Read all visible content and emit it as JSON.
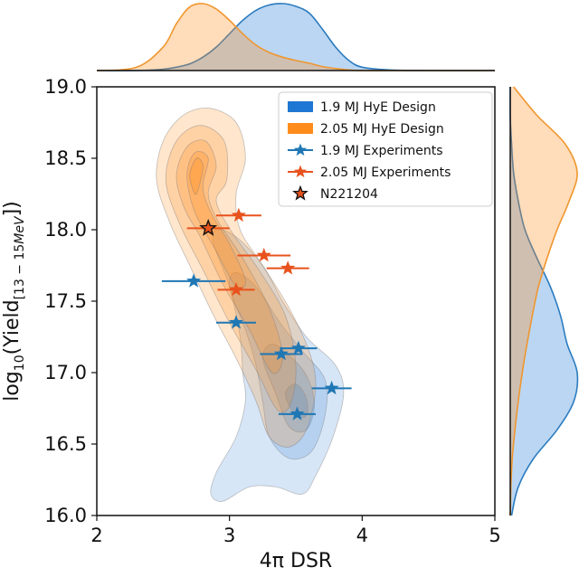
{
  "chart_data": {
    "type": "scatter",
    "xlabel": "4π DSR",
    "ylabel_main": "log",
    "ylabel_sub": "10",
    "ylabel_mid": "(Yield",
    "ylabel_range": "[13 − 15",
    "ylabel_unit": "MeV",
    "ylabel_close": "])",
    "xlim": [
      2,
      5
    ],
    "ylim": [
      16.0,
      19.0
    ],
    "x_ticks": [
      2,
      3,
      4,
      5
    ],
    "x_tick_labels": [
      "2",
      "3",
      "4",
      "5"
    ],
    "y_ticks": [
      16.0,
      16.5,
      17.0,
      17.5,
      18.0,
      18.5,
      19.0
    ],
    "y_tick_labels": [
      "16.0",
      "16.5",
      "17.0",
      "17.5",
      "18.0",
      "18.5",
      "19.0"
    ],
    "grid": false,
    "legend_position": "top-right",
    "colors": {
      "design_19_fill": "#1f77d4",
      "design_205_fill": "#ff8c1a",
      "exp_19": "#1f77b4",
      "exp_205": "#e8521c",
      "n221204": "#e8521c",
      "contour_line": "#7a7a7a",
      "marginal_blue_line": "#2b7bbf",
      "marginal_orange_line": "#f0962e"
    },
    "legend": [
      {
        "label": "1.9 MJ HyE Design",
        "kind": "patch",
        "color": "#1f77d4"
      },
      {
        "label": "2.05 MJ HyE Design",
        "kind": "patch",
        "color": "#ff8c1a"
      },
      {
        "label": "1.9 MJ Experiments",
        "kind": "star-line",
        "color": "#1f77b4"
      },
      {
        "label": "2.05 MJ Experiments",
        "kind": "star-line",
        "color": "#e8521c"
      },
      {
        "label": "N221204",
        "kind": "star-outlined",
        "color": "#e8521c"
      }
    ],
    "series": [
      {
        "name": "1.9 MJ Experiments",
        "points": [
          {
            "x": 2.73,
            "y": 17.64,
            "xerr": 0.24
          },
          {
            "x": 3.05,
            "y": 17.35,
            "xerr": 0.15
          },
          {
            "x": 3.39,
            "y": 17.13,
            "xerr": 0.16
          },
          {
            "x": 3.52,
            "y": 17.17,
            "xerr": 0.14
          },
          {
            "x": 3.77,
            "y": 16.89,
            "xerr": 0.15
          },
          {
            "x": 3.51,
            "y": 16.71,
            "xerr": 0.14
          }
        ]
      },
      {
        "name": "2.05 MJ Experiments",
        "points": [
          {
            "x": 3.07,
            "y": 18.1,
            "xerr": 0.17
          },
          {
            "x": 3.26,
            "y": 17.82,
            "xerr": 0.2
          },
          {
            "x": 3.44,
            "y": 17.73,
            "xerr": 0.16
          },
          {
            "x": 3.05,
            "y": 17.58,
            "xerr": 0.14
          }
        ]
      },
      {
        "name": "N221204",
        "points": [
          {
            "x": 2.84,
            "y": 18.01,
            "xerr": 0.16
          }
        ]
      }
    ],
    "density_contours": [
      {
        "name": "1.9 MJ HyE Design",
        "levels": [
          {
            "opacity": 0.18,
            "path": [
              [
                2.88,
                17.9
              ],
              [
                3.0,
                17.6
              ],
              [
                3.08,
                17.25
              ],
              [
                3.1,
                17.0
              ],
              [
                3.12,
                16.8
              ],
              [
                3.05,
                16.55
              ],
              [
                2.9,
                16.3
              ],
              [
                2.86,
                16.15
              ],
              [
                2.95,
                16.1
              ],
              [
                3.15,
                16.2
              ],
              [
                3.35,
                16.2
              ],
              [
                3.55,
                16.15
              ],
              [
                3.65,
                16.28
              ],
              [
                3.78,
                16.55
              ],
              [
                3.86,
                16.85
              ],
              [
                3.8,
                17.05
              ],
              [
                3.58,
                17.25
              ],
              [
                3.4,
                17.5
              ],
              [
                3.25,
                17.75
              ],
              [
                3.05,
                17.95
              ],
              [
                2.9,
                18.0
              ]
            ]
          },
          {
            "opacity": 0.18,
            "path": [
              [
                3.0,
                17.6
              ],
              [
                3.12,
                17.3
              ],
              [
                3.2,
                17.05
              ],
              [
                3.25,
                16.8
              ],
              [
                3.3,
                16.55
              ],
              [
                3.45,
                16.4
              ],
              [
                3.62,
                16.45
              ],
              [
                3.72,
                16.7
              ],
              [
                3.72,
                16.95
              ],
              [
                3.55,
                17.15
              ],
              [
                3.38,
                17.35
              ],
              [
                3.2,
                17.6
              ],
              [
                3.05,
                17.7
              ]
            ]
          },
          {
            "opacity": 0.2,
            "path": [
              [
                3.25,
                17.1
              ],
              [
                3.35,
                16.85
              ],
              [
                3.45,
                16.62
              ],
              [
                3.58,
                16.6
              ],
              [
                3.64,
                16.78
              ],
              [
                3.58,
                16.98
              ],
              [
                3.45,
                17.12
              ],
              [
                3.32,
                17.2
              ]
            ]
          },
          {
            "opacity": 0.22,
            "path": [
              [
                3.42,
                16.85
              ],
              [
                3.5,
                16.7
              ],
              [
                3.58,
                16.7
              ],
              [
                3.58,
                16.82
              ],
              [
                3.5,
                16.92
              ]
            ]
          }
        ]
      },
      {
        "name": "2.05 MJ HyE Design",
        "levels": [
          {
            "opacity": 0.22,
            "path": [
              [
                2.45,
                18.35
              ],
              [
                2.5,
                18.62
              ],
              [
                2.65,
                18.8
              ],
              [
                2.85,
                18.85
              ],
              [
                3.05,
                18.75
              ],
              [
                3.12,
                18.5
              ],
              [
                3.05,
                18.25
              ],
              [
                3.08,
                18.0
              ],
              [
                3.25,
                17.75
              ],
              [
                3.45,
                17.45
              ],
              [
                3.6,
                17.15
              ],
              [
                3.65,
                16.9
              ],
              [
                3.58,
                16.6
              ],
              [
                3.45,
                16.48
              ],
              [
                3.3,
                16.55
              ],
              [
                3.2,
                16.8
              ],
              [
                3.05,
                17.1
              ],
              [
                2.88,
                17.4
              ],
              [
                2.7,
                17.75
              ],
              [
                2.55,
                18.05
              ]
            ]
          },
          {
            "opacity": 0.22,
            "path": [
              [
                2.52,
                18.35
              ],
              [
                2.6,
                18.62
              ],
              [
                2.78,
                18.73
              ],
              [
                2.96,
                18.62
              ],
              [
                2.98,
                18.35
              ],
              [
                2.9,
                18.2
              ],
              [
                3.02,
                17.98
              ],
              [
                3.22,
                17.72
              ],
              [
                3.42,
                17.4
              ],
              [
                3.5,
                17.05
              ],
              [
                3.46,
                16.78
              ],
              [
                3.36,
                16.74
              ],
              [
                3.2,
                17.02
              ],
              [
                3.0,
                17.35
              ],
              [
                2.8,
                17.72
              ],
              [
                2.62,
                18.05
              ]
            ]
          },
          {
            "opacity": 0.24,
            "path": [
              [
                2.6,
                18.38
              ],
              [
                2.68,
                18.58
              ],
              [
                2.82,
                18.62
              ],
              [
                2.9,
                18.45
              ],
              [
                2.84,
                18.25
              ],
              [
                2.92,
                18.05
              ],
              [
                3.1,
                17.8
              ],
              [
                3.3,
                17.45
              ],
              [
                3.4,
                17.12
              ],
              [
                3.32,
                17.0
              ],
              [
                3.15,
                17.3
              ],
              [
                2.95,
                17.62
              ],
              [
                2.78,
                17.95
              ],
              [
                2.66,
                18.15
              ]
            ]
          },
          {
            "opacity": 0.26,
            "path": [
              [
                2.68,
                18.38
              ],
              [
                2.74,
                18.54
              ],
              [
                2.84,
                18.5
              ],
              [
                2.8,
                18.3
              ],
              [
                2.86,
                18.12
              ],
              [
                3.0,
                17.9
              ],
              [
                3.12,
                17.65
              ],
              [
                3.05,
                17.6
              ],
              [
                2.9,
                17.85
              ],
              [
                2.74,
                18.12
              ]
            ]
          },
          {
            "opacity": 0.3,
            "path": [
              [
                2.7,
                18.38
              ],
              [
                2.75,
                18.5
              ],
              [
                2.8,
                18.45
              ],
              [
                2.77,
                18.3
              ],
              [
                2.74,
                18.25
              ]
            ]
          }
        ]
      }
    ],
    "marginals": {
      "top": {
        "x": [
          2.0,
          2.3,
          2.5,
          2.6,
          2.7,
          2.8,
          2.9,
          3.0,
          3.1,
          3.2,
          3.3,
          3.4,
          3.5,
          3.6,
          3.7,
          3.8,
          3.9,
          4.0,
          4.2,
          4.5,
          5.0
        ],
        "series": [
          {
            "name": "1.9 MJ HyE Design",
            "density": [
              0,
              0.0,
              0.02,
              0.05,
              0.1,
              0.2,
              0.35,
              0.55,
              0.75,
              0.9,
              0.98,
              1.0,
              0.96,
              0.86,
              0.62,
              0.35,
              0.15,
              0.05,
              0.01,
              0,
              0
            ]
          },
          {
            "name": "2.05 MJ HyE Design",
            "density": [
              0,
              0.05,
              0.35,
              0.7,
              0.95,
              1.0,
              0.92,
              0.75,
              0.55,
              0.38,
              0.27,
              0.2,
              0.15,
              0.11,
              0.06,
              0.03,
              0.01,
              0,
              0,
              0,
              0
            ]
          }
        ]
      },
      "right": {
        "y": [
          16.0,
          16.2,
          16.4,
          16.6,
          16.8,
          17.0,
          17.2,
          17.4,
          17.6,
          17.8,
          18.0,
          18.2,
          18.4,
          18.6,
          18.8,
          19.0
        ],
        "series": [
          {
            "name": "1.9 MJ HyE Design",
            "density": [
              0.02,
              0.12,
              0.35,
              0.7,
              0.95,
              1.0,
              0.85,
              0.75,
              0.6,
              0.4,
              0.22,
              0.12,
              0.05,
              0.02,
              0,
              0
            ]
          },
          {
            "name": "2.05 MJ HyE Design",
            "density": [
              0,
              0.01,
              0.03,
              0.07,
              0.12,
              0.18,
              0.25,
              0.33,
              0.42,
              0.55,
              0.7,
              0.88,
              1.0,
              0.82,
              0.4,
              0.05
            ]
          }
        ]
      }
    }
  }
}
